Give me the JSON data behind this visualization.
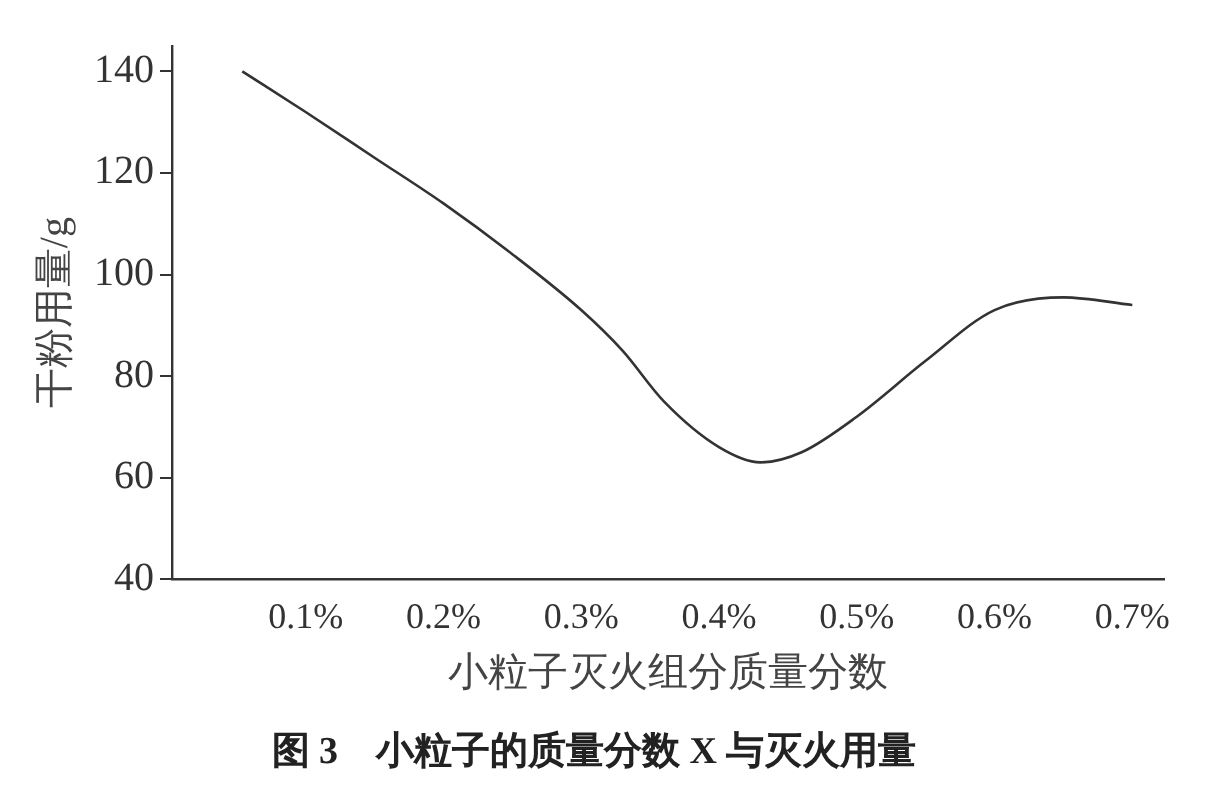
{
  "chart_data": {
    "type": "line",
    "title": "图 3　小粒子的质量分数 X 与灭火用量",
    "xlabel": "小粒子灭火组分质量分数",
    "ylabel": "干粉用量/g",
    "x": [
      0.054,
      0.1,
      0.15,
      0.2,
      0.25,
      0.3,
      0.33,
      0.36,
      0.4,
      0.43,
      0.46,
      0.5,
      0.55,
      0.6,
      0.65,
      0.7
    ],
    "series": [
      {
        "color": "#333333",
        "values": [
          140,
          132,
          123,
          114,
          104,
          93,
          85,
          75,
          66,
          63,
          65,
          72,
          83,
          93,
          95.5,
          94
        ]
      }
    ],
    "xlim": [
      0.003,
      0.723
    ],
    "xticks": [
      {
        "value": 0.1,
        "label": "0.1%"
      },
      {
        "value": 0.2,
        "label": "0.2%"
      },
      {
        "value": 0.3,
        "label": "0.3%"
      },
      {
        "value": 0.4,
        "label": "0.4%"
      },
      {
        "value": 0.5,
        "label": "0.5%"
      },
      {
        "value": 0.6,
        "label": "0.6%"
      },
      {
        "value": 0.7,
        "label": "0.7%"
      }
    ],
    "ylim": [
      40,
      145
    ],
    "yticks": [
      40,
      60,
      80,
      100,
      120,
      140
    ],
    "grid": false,
    "legend": false,
    "marker": "none",
    "line_style": "solid"
  }
}
